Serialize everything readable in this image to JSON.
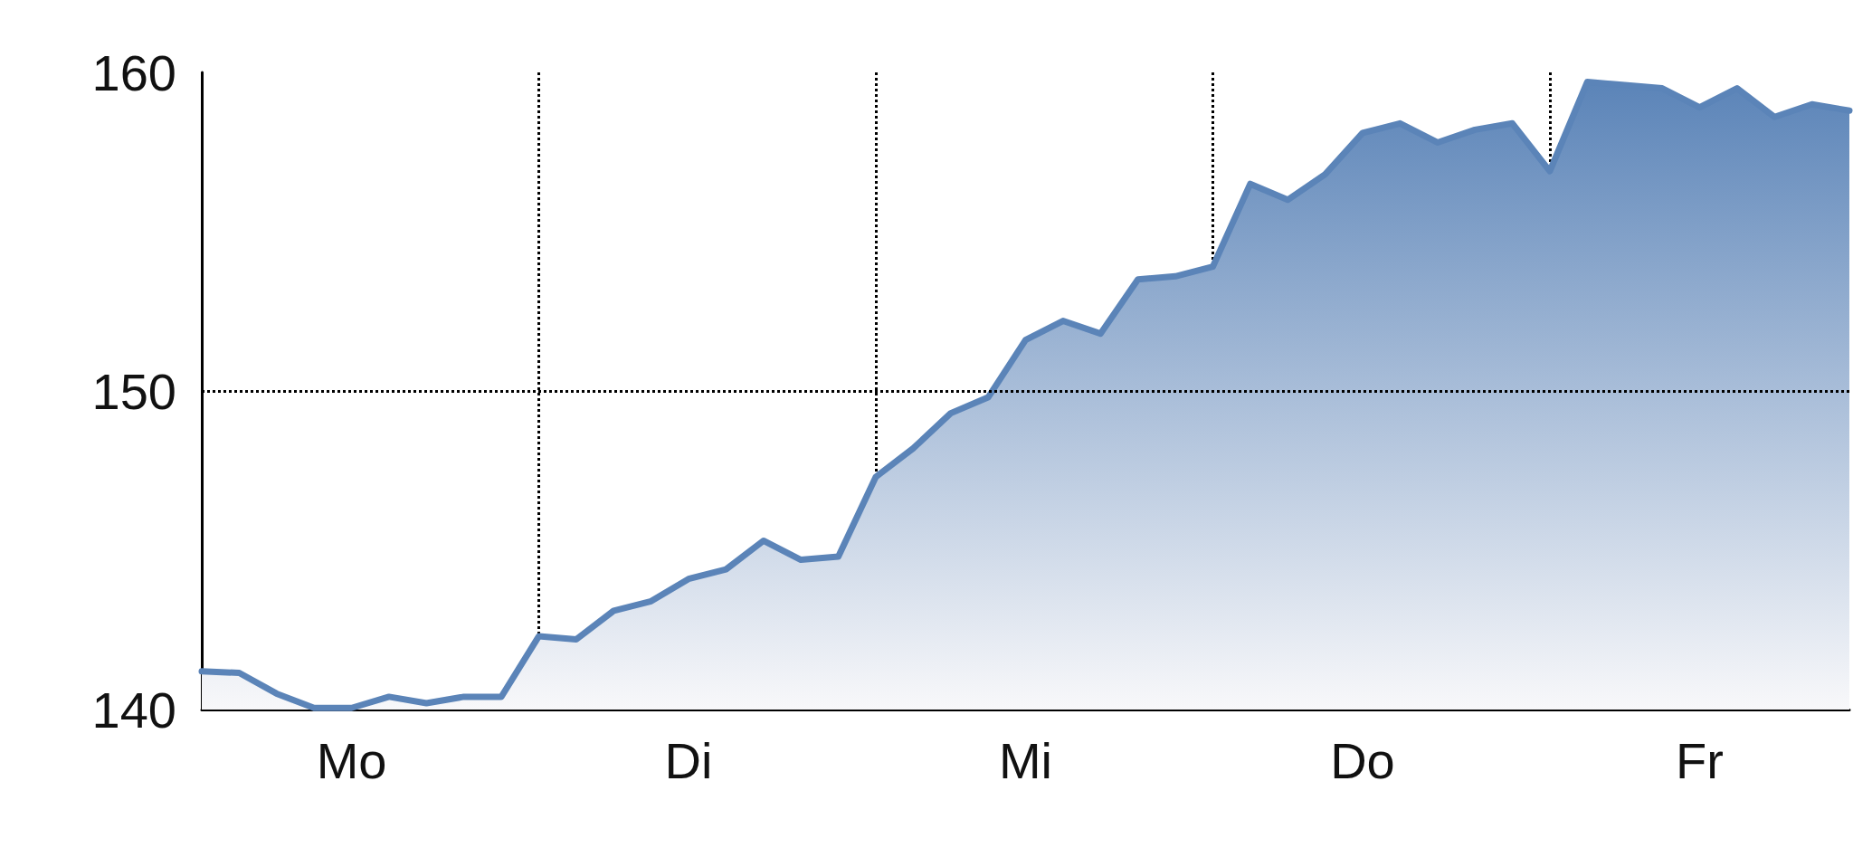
{
  "chart_data": {
    "type": "area",
    "categories": [
      null,
      null,
      null,
      null,
      "Mo",
      null,
      null,
      null,
      null,
      null,
      null,
      null,
      null,
      "Di",
      null,
      null,
      null,
      null,
      null,
      null,
      null,
      null,
      "Mi",
      null,
      null,
      null,
      null,
      null,
      null,
      null,
      null,
      "Do",
      null,
      null,
      null,
      null,
      null,
      null,
      null,
      null,
      "Fr",
      null,
      null,
      null,
      null
    ],
    "series": [
      {
        "color": "#5b84b8",
        "values": [
          141.2,
          141.15,
          140.5,
          140.05,
          140.05,
          140.4,
          140.2,
          140.4,
          140.4,
          142.3,
          142.2,
          143.1,
          143.4,
          144.1,
          144.4,
          145.3,
          144.7,
          144.8,
          147.3,
          148.2,
          149.3,
          149.8,
          151.6,
          152.2,
          151.8,
          153.5,
          153.6,
          153.9,
          156.5,
          156.0,
          156.8,
          158.1,
          158.4,
          157.8,
          158.2,
          158.4,
          156.9,
          159.7,
          159.6,
          159.5,
          158.9,
          159.5,
          158.6,
          159.0,
          158.8
        ]
      }
    ],
    "ylim": [
      140,
      160
    ],
    "yticks": [
      140,
      150,
      160
    ],
    "ref_lines": [
      {
        "axis": "y",
        "value": 150,
        "line_style": "dotted"
      }
    ],
    "grid": "x",
    "marker": "none",
    "line_style": "solid"
  }
}
